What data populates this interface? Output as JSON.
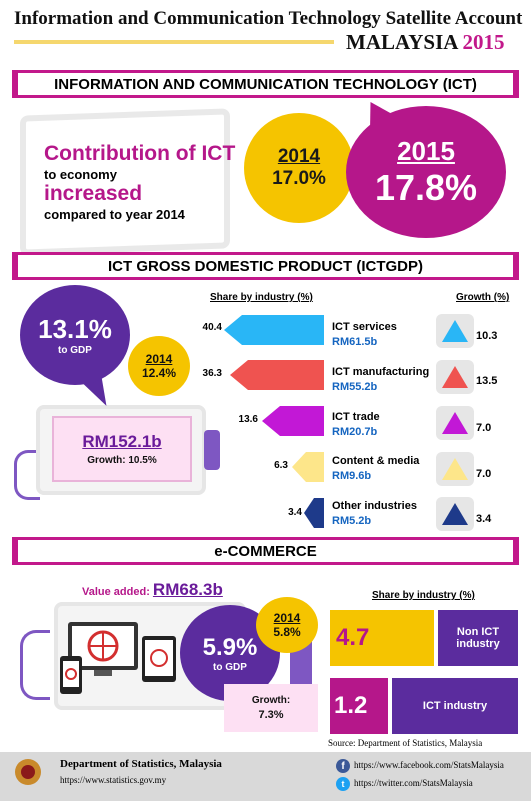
{
  "header": {
    "title": "Information and Communication Technology Satellite Account",
    "country": "MALAYSIA",
    "year": "2015"
  },
  "section_ict": {
    "banner": "INFORMATION AND COMMUNICATION TECHNOLOGY (ICT)",
    "contribution_title": "Contribution of ICT",
    "to_economy": "to economy",
    "increased": "increased",
    "compared": "compared to year 2014",
    "prev_year": "2014",
    "prev_value": "17.0%",
    "curr_year": "2015",
    "curr_value": "17.8%"
  },
  "section_gdp": {
    "banner": "ICT GROSS DOMESTIC PRODUCT (ICTGDP)",
    "gdp_share": "13.1%",
    "gdp_share_label": "to GDP",
    "prev_year": "2014",
    "prev_value": "12.4%",
    "value": "RM152.1b",
    "growth_label": "Growth:",
    "growth_value": "10.5%",
    "share_header": "Share by industry (%)",
    "growth_header": "Growth (%)",
    "industries": [
      {
        "share": "40.4",
        "name": "ICT services",
        "amount": "RM61.5b",
        "growth": "10.3"
      },
      {
        "share": "36.3",
        "name": "ICT manufacturing",
        "amount": "RM55.2b",
        "growth": "13.5"
      },
      {
        "share": "13.6",
        "name": "ICT trade",
        "amount": "RM20.7b",
        "growth": "7.0"
      },
      {
        "share": "6.3",
        "name": "Content & media",
        "amount": "RM9.6b",
        "growth": "7.0"
      },
      {
        "share": "3.4",
        "name": "Other industries",
        "amount": "RM5.2b",
        "growth": "3.4"
      }
    ]
  },
  "section_ec": {
    "banner": "e-COMMERCE",
    "value_added_label": "Value added:",
    "value_added": "RM68.3b",
    "gdp_share": "5.9%",
    "gdp_share_label": "to GDP",
    "prev_year": "2014",
    "prev_value": "5.8%",
    "growth_label": "Growth:",
    "growth_value": "7.3%",
    "share_header": "Share by industry (%)",
    "shares": [
      {
        "value": "4.7",
        "label": "Non ICT industry"
      },
      {
        "value": "1.2",
        "label": "ICT industry"
      }
    ],
    "source": "Source: Department of Statistics, Malaysia"
  },
  "footer": {
    "dept_name": "Department of Statistics, Malaysia",
    "dept_url": "https://www.statistics.gov.my",
    "facebook": "https://www.facebook.com/StatsMalaysia",
    "twitter": "https://twitter.com/StatsMalaysia",
    "facebook_icon": "f",
    "twitter_icon": "t"
  },
  "colors": {
    "magenta": "#b5178a",
    "purple": "#5b2c9e",
    "yellow": "#f5c400",
    "industry_colors": [
      "#29b6f6",
      "#ef5350",
      "#c218d6",
      "#fde68a",
      "#1e3a8a"
    ]
  }
}
